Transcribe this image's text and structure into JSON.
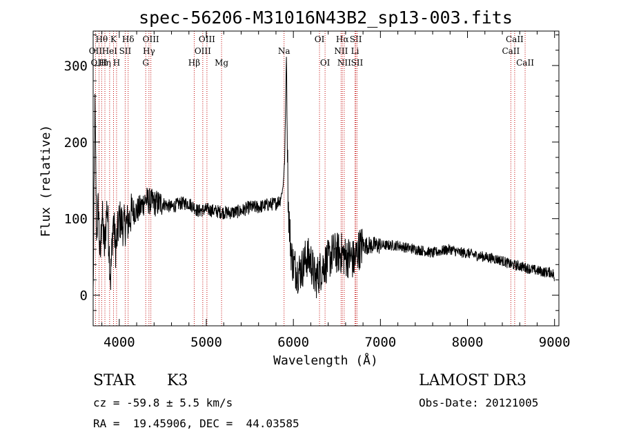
{
  "chart_data": {
    "type": "line",
    "title": "spec-56206-M31016N43B2_sp13-003.fits",
    "xlabel": "Wavelength (Å)",
    "ylabel": "Flux (relative)",
    "xlim": [
      3700,
      9050
    ],
    "ylim": [
      -40,
      345
    ],
    "xticks": [
      4000,
      5000,
      6000,
      7000,
      8000,
      9000
    ],
    "xtick_labels": [
      "4000",
      "5000",
      "6000",
      "7000",
      "8000",
      "9000"
    ],
    "yticks": [
      0,
      100,
      200,
      300
    ],
    "ytick_labels": [
      "0",
      "100",
      "200",
      "300"
    ],
    "spectrum_anchors": {
      "x": [
        3700,
        3720,
        3740,
        3760,
        3780,
        3800,
        3830,
        3860,
        3900,
        3930,
        3960,
        4000,
        4050,
        4100,
        4150,
        4200,
        4250,
        4300,
        4400,
        4500,
        4600,
        4700,
        4800,
        4860,
        4900,
        5000,
        5100,
        5200,
        5300,
        5400,
        5500,
        5600,
        5700,
        5800,
        5850,
        5880,
        5900,
        5920,
        5940,
        5960,
        5980,
        6000,
        6050,
        6100,
        6150,
        6200,
        6250,
        6300,
        6350,
        6400,
        6450,
        6500,
        6550,
        6600,
        6650,
        6700,
        6750,
        6800,
        6900,
        7000,
        7100,
        7200,
        7300,
        7400,
        7500,
        7600,
        7700,
        7800,
        7900,
        8000,
        8100,
        8200,
        8300,
        8400,
        8500,
        8600,
        8700,
        8800,
        8900,
        8950,
        8990,
        9000
      ],
      "y": [
        0,
        250,
        80,
        120,
        40,
        110,
        60,
        120,
        20,
        100,
        60,
        100,
        90,
        95,
        110,
        110,
        115,
        125,
        120,
        120,
        115,
        120,
        120,
        115,
        110,
        112,
        110,
        108,
        108,
        110,
        115,
        115,
        118,
        120,
        125,
        140,
        175,
        315,
        120,
        80,
        50,
        40,
        30,
        35,
        50,
        45,
        20,
        30,
        40,
        45,
        55,
        55,
        55,
        50,
        50,
        45,
        60,
        65,
        65,
        65,
        65,
        65,
        62,
        60,
        58,
        55,
        58,
        60,
        56,
        55,
        52,
        50,
        48,
        45,
        40,
        38,
        35,
        32,
        30,
        30,
        28,
        10
      ]
    },
    "lines": [
      {
        "label": "Hθ",
        "wave": 3798,
        "row": 1
      },
      {
        "label": "OII",
        "wave": 3727,
        "row": 2
      },
      {
        "label": "OIII",
        "wave": 3768,
        "row": 3
      },
      {
        "label": "K",
        "wave": 3934,
        "row": 1
      },
      {
        "label": "Hη",
        "wave": 3835,
        "row": 3
      },
      {
        "label": "HeI",
        "wave": 3889,
        "row": 2
      },
      {
        "label": "SII",
        "wave": 4068,
        "row": 2
      },
      {
        "label": "H",
        "wave": 3969,
        "row": 3
      },
      {
        "label": "Hδ",
        "wave": 4102,
        "row": 1
      },
      {
        "label": "OIII",
        "wave": 4363,
        "row": 1
      },
      {
        "label": "Hγ",
        "wave": 4341,
        "row": 2
      },
      {
        "label": "G",
        "wave": 4304,
        "row": 3
      },
      {
        "label": "OIII",
        "wave": 5007,
        "row": 1
      },
      {
        "label": "OIII",
        "wave": 4959,
        "row": 2
      },
      {
        "label": "Hβ",
        "wave": 4861,
        "row": 3
      },
      {
        "label": "Mg",
        "wave": 5175,
        "row": 3
      },
      {
        "label": "Na",
        "wave": 5893,
        "row": 2
      },
      {
        "label": "OI",
        "wave": 6300,
        "row": 1
      },
      {
        "label": "OI",
        "wave": 6364,
        "row": 3
      },
      {
        "label": "Hα",
        "wave": 6563,
        "row": 1
      },
      {
        "label": "SII",
        "wave": 6717,
        "row": 1
      },
      {
        "label": "NII",
        "wave": 6548,
        "row": 2
      },
      {
        "label": "Li",
        "wave": 6708,
        "row": 2
      },
      {
        "label": "NII",
        "wave": 6584,
        "row": 3
      },
      {
        "label": "SII",
        "wave": 6731,
        "row": 3
      },
      {
        "label": "CaII",
        "wave": 8542,
        "row": 1
      },
      {
        "label": "CaII",
        "wave": 8498,
        "row": 2
      },
      {
        "label": "CaII",
        "wave": 8662,
        "row": 3
      }
    ]
  },
  "info": {
    "class": "STAR",
    "subclass": "K3",
    "survey": "LAMOST DR3",
    "cz": "cz = -59.8 ± 5.5 km/s",
    "obsdate": "Obs-Date: 20121005",
    "radec": "RA =  19.45906, DEC =  44.03585"
  }
}
